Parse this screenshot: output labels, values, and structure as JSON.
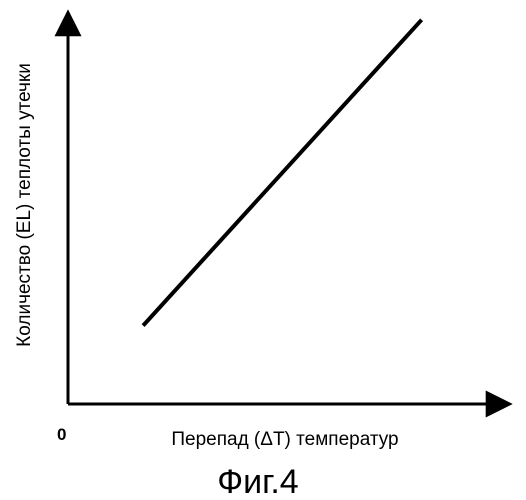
{
  "chart_data": {
    "type": "line",
    "title": "",
    "xlabel": "Перепад (ΔT) температур",
    "ylabel": "Количество (EL) теплоты утечки",
    "origin_label": "0",
    "caption": "Фиг.4",
    "xlim": [
      0,
      1
    ],
    "ylim": [
      0,
      1
    ],
    "grid": false,
    "legend": "none",
    "series": [
      {
        "x": [
          0.17,
          0.8
        ],
        "y": [
          0.2,
          0.98
        ]
      }
    ],
    "colors": {
      "line": "#000000",
      "axis": "#000000"
    }
  }
}
